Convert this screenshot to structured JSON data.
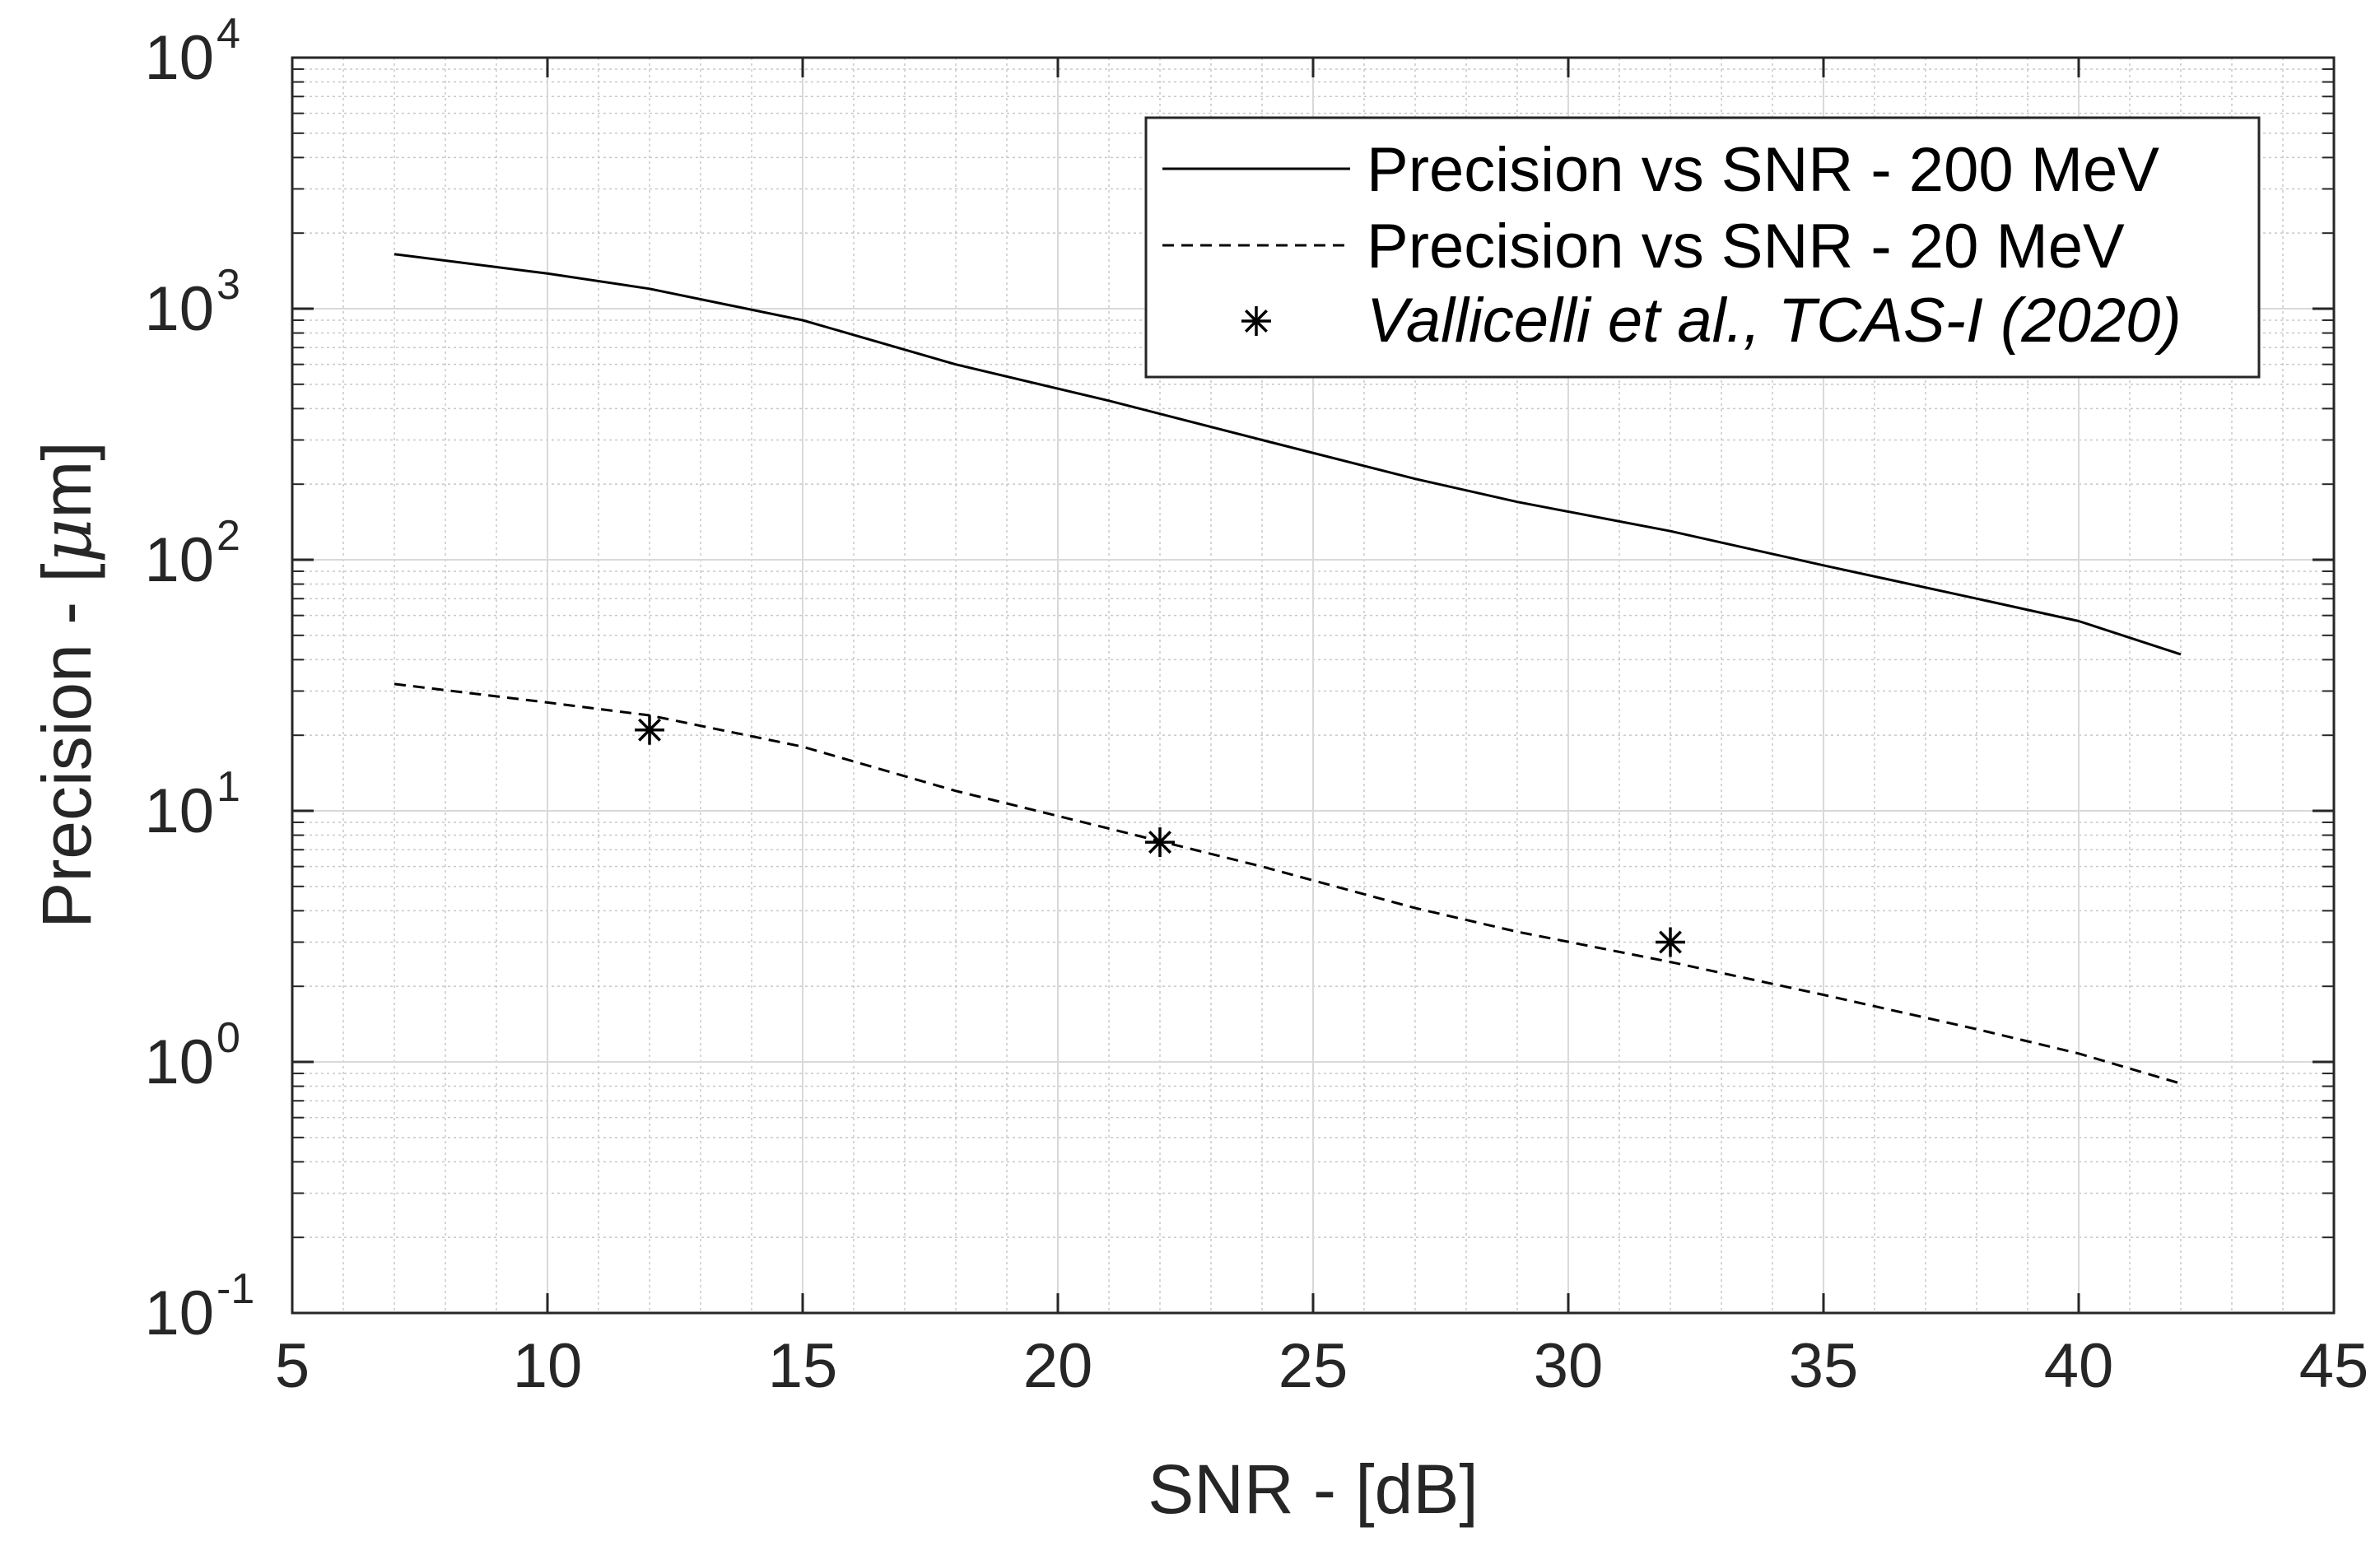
{
  "chart_data": {
    "type": "line",
    "title": "",
    "xlabel": "SNR - [dB]",
    "ylabel_text": "Precision - [",
    "ylabel_mu": "μ",
    "ylabel_unit": "m]",
    "xlim": [
      5,
      45
    ],
    "ylim": [
      0.1,
      10000
    ],
    "yscale": "log",
    "grid": true,
    "minor_grid": true,
    "legend_position": "top-right",
    "x_ticks": [
      5,
      10,
      15,
      20,
      25,
      30,
      35,
      40,
      45
    ],
    "x_tick_labels": [
      "5",
      "10",
      "15",
      "20",
      "25",
      "30",
      "35",
      "40",
      "45"
    ],
    "y_ticks": [
      0.1,
      1,
      10,
      100,
      1000,
      10000
    ],
    "y_tick_bases": [
      "10",
      "10",
      "10",
      "10",
      "10",
      "10"
    ],
    "y_tick_exponents": [
      "-1",
      "0",
      "1",
      "2",
      "3",
      "4"
    ],
    "series": [
      {
        "name": "Precision vs SNR - 200 MeV",
        "style": "solid",
        "color": "#000000",
        "x": [
          7,
          10,
          12,
          15,
          18,
          21,
          24,
          27,
          29,
          32,
          35,
          38,
          40,
          42
        ],
        "y": [
          1650,
          1380,
          1200,
          900,
          600,
          430,
          300,
          210,
          170,
          130,
          95,
          70,
          57,
          42
        ]
      },
      {
        "name": "Precision vs SNR - 20 MeV",
        "style": "dashed",
        "color": "#000000",
        "x": [
          7,
          10,
          12,
          15,
          18,
          21,
          24,
          27,
          29,
          32,
          35,
          38,
          40,
          42
        ],
        "y": [
          32,
          27,
          24,
          18,
          12,
          8.5,
          6,
          4.1,
          3.3,
          2.5,
          1.85,
          1.35,
          1.08,
          0.82
        ]
      },
      {
        "name": "Vallicelli et al., TCAS-I (2020)",
        "style": "markers",
        "marker": "asterisk",
        "color": "#000000",
        "x": [
          12,
          22,
          32
        ],
        "y": [
          21,
          7.5,
          3.0
        ]
      }
    ]
  }
}
